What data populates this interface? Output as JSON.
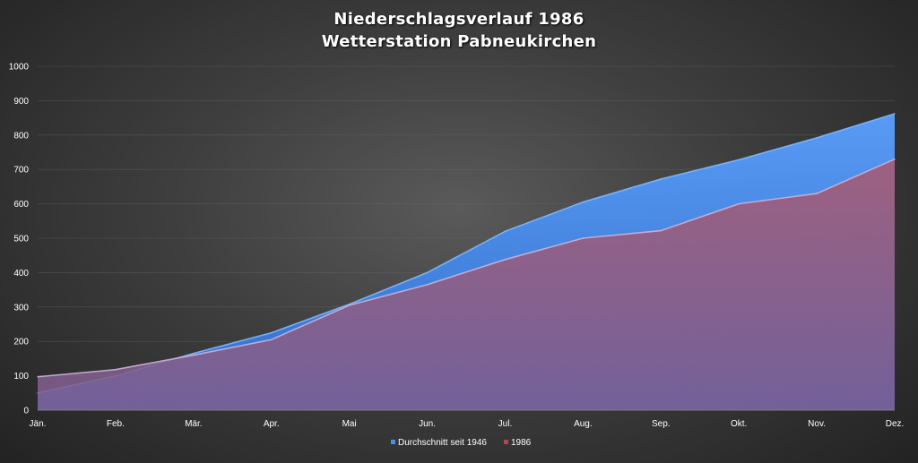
{
  "chart_data": {
    "type": "area",
    "title": "Niederschlagsverlauf 1986",
    "subtitle": "Wetterstation Pabneukirchen",
    "categories": [
      "Jän.",
      "Feb.",
      "Mär.",
      "Apr.",
      "Mai",
      "Jun.",
      "Jul.",
      "Aug.",
      "Sep.",
      "Okt.",
      "Nov.",
      "Dez."
    ],
    "yticks": [
      0,
      100,
      200,
      300,
      400,
      500,
      600,
      700,
      800,
      900,
      1000
    ],
    "ylim": [
      0,
      1000
    ],
    "grid": true,
    "legend_position": "bottom",
    "series": [
      {
        "name": "Durchschnitt seit 1946",
        "color": "#4a90e2",
        "values": [
          50,
          100,
          165,
          225,
          308,
          400,
          520,
          605,
          672,
          728,
          792,
          862
        ]
      },
      {
        "name": "1986",
        "color": "#b04a4a",
        "values": [
          97,
          118,
          160,
          205,
          305,
          365,
          438,
          500,
          522,
          600,
          630,
          730
        ]
      }
    ]
  }
}
